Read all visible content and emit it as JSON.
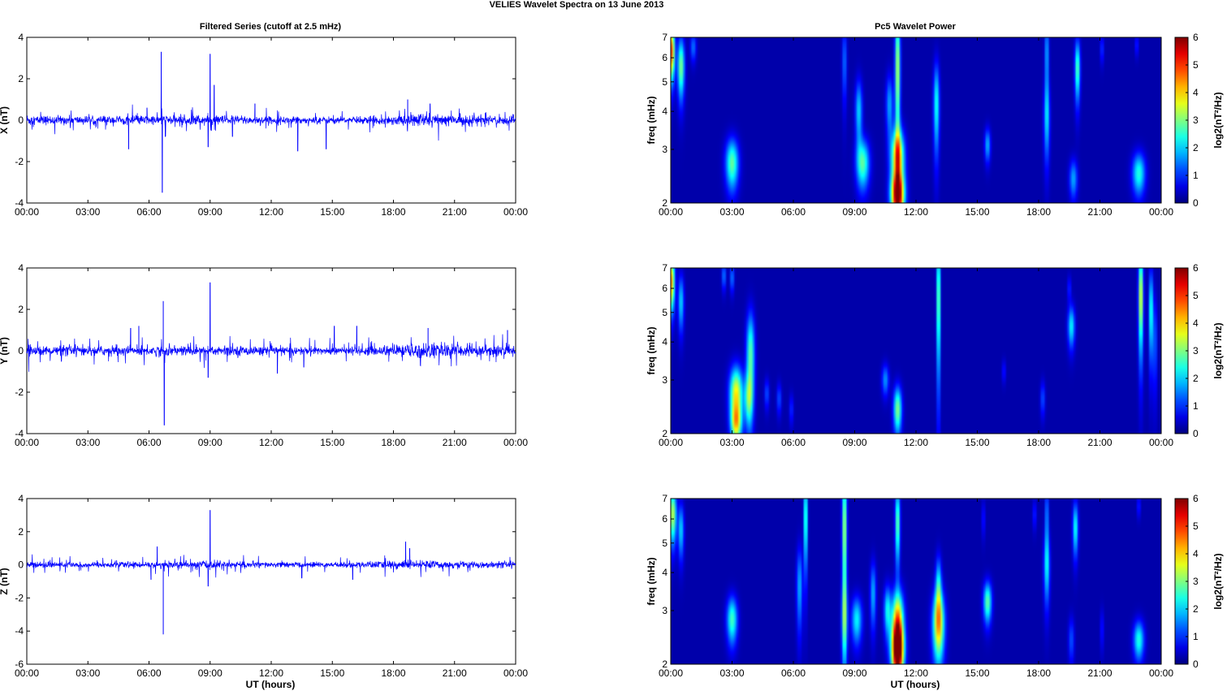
{
  "figure": {
    "title": "VELIES Wavelet Spectra on 13 June      2013",
    "left_title": "Filtered Series (cutoff at 2.5 mHz)",
    "right_title": "Pc5 Wavelet Power",
    "xlabel": "UT (hours)"
  },
  "chart_data": [
    {
      "type": "line",
      "panel": "X",
      "ylabel": "X (nT)",
      "ylim": [
        -4,
        4
      ],
      "yticks": [
        -4,
        -2,
        0,
        2,
        4
      ],
      "xlim": [
        0,
        24
      ],
      "xticks": [
        "00:00",
        "03:00",
        "06:00",
        "09:00",
        "12:00",
        "15:00",
        "18:00",
        "21:00",
        "00:00"
      ],
      "series_color": "#0000ff",
      "noise_profile": [
        [
          0,
          0.35
        ],
        [
          0.5,
          0.25
        ],
        [
          3,
          0.22
        ],
        [
          6,
          0.25
        ],
        [
          8.5,
          0.3
        ],
        [
          12,
          0.2
        ],
        [
          16,
          0.18
        ],
        [
          18,
          0.25
        ],
        [
          19.5,
          0.4
        ],
        [
          21,
          0.3
        ],
        [
          24,
          0.25
        ]
      ],
      "spikes": [
        [
          5.0,
          -1.4
        ],
        [
          5.9,
          0.6
        ],
        [
          6.6,
          3.3
        ],
        [
          6.65,
          -3.5
        ],
        [
          6.8,
          -0.8
        ],
        [
          9.0,
          3.2
        ],
        [
          9.2,
          1.7
        ],
        [
          8.9,
          -1.3
        ],
        [
          10.1,
          -0.8
        ],
        [
          11.2,
          0.8
        ],
        [
          13.3,
          -1.5
        ],
        [
          14.7,
          -1.4
        ],
        [
          18.7,
          1.0
        ],
        [
          19.8,
          0.8
        ]
      ]
    },
    {
      "type": "line",
      "panel": "Y",
      "ylabel": "Y (nT)",
      "ylim": [
        -4,
        4
      ],
      "yticks": [
        -4,
        -2,
        0,
        2,
        4
      ],
      "xlim": [
        0,
        24
      ],
      "xticks": [
        "00:00",
        "03:00",
        "06:00",
        "09:00",
        "12:00",
        "15:00",
        "18:00",
        "21:00",
        "00:00"
      ],
      "series_color": "#0000ff",
      "noise_profile": [
        [
          0,
          0.35
        ],
        [
          0.5,
          0.25
        ],
        [
          3,
          0.25
        ],
        [
          6,
          0.28
        ],
        [
          8.5,
          0.3
        ],
        [
          12,
          0.22
        ],
        [
          16,
          0.2
        ],
        [
          18,
          0.3
        ],
        [
          19.5,
          0.45
        ],
        [
          21,
          0.35
        ],
        [
          24,
          0.3
        ]
      ],
      "spikes": [
        [
          5.1,
          1.1
        ],
        [
          5.5,
          1.2
        ],
        [
          6.7,
          2.4
        ],
        [
          6.75,
          -3.6
        ],
        [
          9.0,
          3.3
        ],
        [
          8.9,
          -1.3
        ],
        [
          12.3,
          -1.1
        ],
        [
          13.6,
          -0.8
        ],
        [
          15.1,
          1.2
        ],
        [
          16.2,
          1.2
        ],
        [
          19.7,
          1.1
        ],
        [
          23.6,
          1.0
        ]
      ]
    },
    {
      "type": "line",
      "panel": "Z",
      "ylabel": "Z (nT)",
      "ylim": [
        -6,
        4
      ],
      "yticks": [
        -6,
        -4,
        -2,
        0,
        2,
        4
      ],
      "xlim": [
        0,
        24
      ],
      "xticks": [
        "00:00",
        "03:00",
        "06:00",
        "09:00",
        "12:00",
        "15:00",
        "18:00",
        "21:00",
        "00:00"
      ],
      "series_color": "#0000ff",
      "noise_profile": [
        [
          0,
          0.3
        ],
        [
          0.5,
          0.2
        ],
        [
          3,
          0.18
        ],
        [
          6,
          0.2
        ],
        [
          8.5,
          0.3
        ],
        [
          12,
          0.18
        ],
        [
          16,
          0.18
        ],
        [
          18,
          0.3
        ],
        [
          19.5,
          0.3
        ],
        [
          21,
          0.22
        ],
        [
          24,
          0.2
        ]
      ],
      "spikes": [
        [
          6.4,
          1.1
        ],
        [
          6.1,
          -0.9
        ],
        [
          6.7,
          -4.2
        ],
        [
          9.0,
          3.3
        ],
        [
          8.9,
          -1.3
        ],
        [
          13.5,
          -0.8
        ],
        [
          16.0,
          -0.9
        ],
        [
          18.6,
          1.4
        ],
        [
          18.8,
          1.0
        ]
      ]
    },
    {
      "type": "heatmap",
      "panel": "X",
      "ylabel": "freq (mHz)",
      "ylim": [
        2,
        7
      ],
      "yticks": [
        2,
        3,
        4,
        5,
        6,
        7
      ],
      "y_scale": "log",
      "xlim": [
        0,
        24
      ],
      "xticks": [
        "00:00",
        "03:00",
        "06:00",
        "09:00",
        "12:00",
        "15:00",
        "18:00",
        "21:00",
        "00:00"
      ],
      "colorbar": {
        "label": "log2(nT²/Hz)",
        "range": [
          0,
          6
        ],
        "ticks": [
          0,
          1,
          2,
          3,
          4,
          5,
          6
        ],
        "colormap": "jet"
      },
      "blobs": [
        [
          0.05,
          6.3,
          0.1,
          0.9,
          4.5
        ],
        [
          0.5,
          5.6,
          0.12,
          0.9,
          2.8
        ],
        [
          1.1,
          6.5,
          0.1,
          0.5,
          1.2
        ],
        [
          3.0,
          2.7,
          0.22,
          0.36,
          2.6
        ],
        [
          8.5,
          5.8,
          0.08,
          1.2,
          1.2
        ],
        [
          9.2,
          4.0,
          0.12,
          0.7,
          1.8
        ],
        [
          9.4,
          2.7,
          0.22,
          0.35,
          2.5
        ],
        [
          10.7,
          4.2,
          0.12,
          0.7,
          1.5
        ],
        [
          11.1,
          5.5,
          0.09,
          2.0,
          3.2
        ],
        [
          11.1,
          2.8,
          0.22,
          0.45,
          4.2
        ],
        [
          11.1,
          2.1,
          0.22,
          0.25,
          5.2
        ],
        [
          13.0,
          4.2,
          0.1,
          1.0,
          2.2
        ],
        [
          15.5,
          3.1,
          0.1,
          0.28,
          1.6
        ],
        [
          18.4,
          3.8,
          0.1,
          0.8,
          1.8
        ],
        [
          18.4,
          6.2,
          0.07,
          1.2,
          1.6
        ],
        [
          19.9,
          5.5,
          0.09,
          0.9,
          2.6
        ],
        [
          19.7,
          2.4,
          0.14,
          0.25,
          1.5
        ],
        [
          22.9,
          2.5,
          0.22,
          0.28,
          2.2
        ],
        [
          21.1,
          6.4,
          0.06,
          0.5,
          0.9
        ],
        [
          22.8,
          6.6,
          0.05,
          0.4,
          0.9
        ]
      ]
    },
    {
      "type": "heatmap",
      "panel": "Y",
      "ylabel": "freq (mHz)",
      "ylim": [
        2,
        7
      ],
      "yticks": [
        2,
        3,
        4,
        5,
        6,
        7
      ],
      "y_scale": "log",
      "xlim": [
        0,
        24
      ],
      "xticks": [
        "00:00",
        "03:00",
        "06:00",
        "09:00",
        "12:00",
        "15:00",
        "18:00",
        "21:00",
        "00:00"
      ],
      "colorbar": {
        "label": "log2(nT²/Hz)",
        "range": [
          0,
          6
        ],
        "ticks": [
          0,
          1,
          2,
          3,
          4,
          5,
          6
        ],
        "colormap": "jet"
      },
      "blobs": [
        [
          0.05,
          6.3,
          0.1,
          0.9,
          4.0
        ],
        [
          0.5,
          5.4,
          0.1,
          0.8,
          1.8
        ],
        [
          2.6,
          6.6,
          0.07,
          0.5,
          1.3
        ],
        [
          3.0,
          6.5,
          0.07,
          0.5,
          1.3
        ],
        [
          3.2,
          2.7,
          0.22,
          0.4,
          3.6
        ],
        [
          3.2,
          2.15,
          0.18,
          0.22,
          2.8
        ],
        [
          3.9,
          3.6,
          0.14,
          0.9,
          2.6
        ],
        [
          3.8,
          2.6,
          0.14,
          0.35,
          2.0
        ],
        [
          4.7,
          2.7,
          0.08,
          0.22,
          1.0
        ],
        [
          5.3,
          2.6,
          0.08,
          0.22,
          1.0
        ],
        [
          5.9,
          2.4,
          0.07,
          0.2,
          0.8
        ],
        [
          10.5,
          3.0,
          0.12,
          0.25,
          1.4
        ],
        [
          11.1,
          2.4,
          0.14,
          0.3,
          2.8
        ],
        [
          13.1,
          5.5,
          0.06,
          2.0,
          3.2
        ],
        [
          16.3,
          3.2,
          0.06,
          0.2,
          0.7
        ],
        [
          18.2,
          2.6,
          0.08,
          0.25,
          1.0
        ],
        [
          19.6,
          4.5,
          0.12,
          0.5,
          2.0
        ],
        [
          19.5,
          6.0,
          0.06,
          0.4,
          0.8
        ],
        [
          23.0,
          5.6,
          0.08,
          1.5,
          3.6
        ],
        [
          23.5,
          5.0,
          0.07,
          1.2,
          2.4
        ],
        [
          23.7,
          4.0,
          0.06,
          1.0,
          1.2
        ]
      ]
    },
    {
      "type": "heatmap",
      "panel": "Z",
      "ylabel": "freq (mHz)",
      "ylim": [
        2,
        7
      ],
      "yticks": [
        2,
        3,
        4,
        5,
        6,
        7
      ],
      "y_scale": "log",
      "xlim": [
        0,
        24
      ],
      "xticks": [
        "00:00",
        "03:00",
        "06:00",
        "09:00",
        "12:00",
        "15:00",
        "18:00",
        "21:00",
        "00:00"
      ],
      "colorbar": {
        "label": "log2(nT²/Hz)",
        "range": [
          0,
          6
        ],
        "ticks": [
          0,
          1,
          2,
          3,
          4,
          5,
          6
        ],
        "colormap": "jet"
      },
      "blobs": [
        [
          0.1,
          6.2,
          0.12,
          0.9,
          3.2
        ],
        [
          0.5,
          5.5,
          0.1,
          0.8,
          1.8
        ],
        [
          3.0,
          2.8,
          0.18,
          0.35,
          2.4
        ],
        [
          6.3,
          3.6,
          0.1,
          0.8,
          1.6
        ],
        [
          6.6,
          6.0,
          0.06,
          1.5,
          2.8
        ],
        [
          8.5,
          5.5,
          0.08,
          2.0,
          3.2
        ],
        [
          8.5,
          2.8,
          0.1,
          0.6,
          2.0
        ],
        [
          9.1,
          2.8,
          0.18,
          0.35,
          2.0
        ],
        [
          9.9,
          3.4,
          0.1,
          0.6,
          1.6
        ],
        [
          10.6,
          3.0,
          0.12,
          0.4,
          2.0
        ],
        [
          11.1,
          5.8,
          0.08,
          1.2,
          2.8
        ],
        [
          11.1,
          2.7,
          0.2,
          0.5,
          4.4
        ],
        [
          11.1,
          2.2,
          0.2,
          0.3,
          5.2
        ],
        [
          13.1,
          2.7,
          0.2,
          0.5,
          3.8
        ],
        [
          13.1,
          3.6,
          0.1,
          0.6,
          2.0
        ],
        [
          15.5,
          3.2,
          0.14,
          0.35,
          2.6
        ],
        [
          15.3,
          6.0,
          0.05,
          0.6,
          0.8
        ],
        [
          17.8,
          6.2,
          0.06,
          0.5,
          0.8
        ],
        [
          18.4,
          4.2,
          0.1,
          0.8,
          2.0
        ],
        [
          18.4,
          6.2,
          0.06,
          1.0,
          1.4
        ],
        [
          19.8,
          5.6,
          0.09,
          0.8,
          2.2
        ],
        [
          19.6,
          2.4,
          0.1,
          0.3,
          1.0
        ],
        [
          22.9,
          2.4,
          0.18,
          0.25,
          2.2
        ],
        [
          21.1,
          2.6,
          0.06,
          0.3,
          0.7
        ],
        [
          22.9,
          6.6,
          0.05,
          0.4,
          0.9
        ]
      ]
    }
  ]
}
